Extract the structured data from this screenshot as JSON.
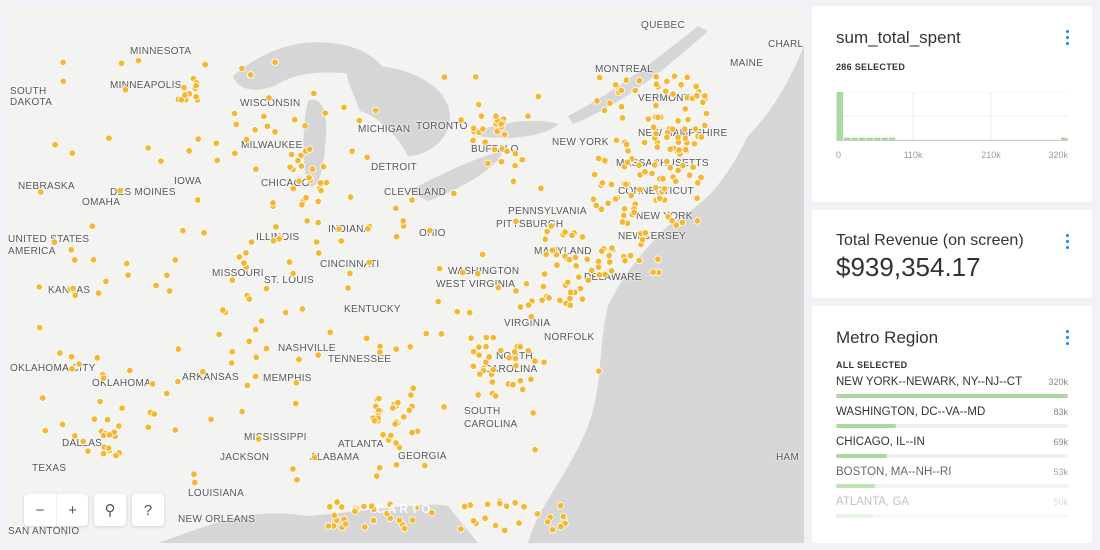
{
  "map": {
    "labels": [
      "MINNESOTA",
      "MINNEAPOLIS",
      "SOUTH",
      "DAKOTA",
      "WISCONSIN",
      "MICHIGAN",
      "TORONTO",
      "MONTREAL",
      "QUEBEC",
      "CHARL",
      "MAINE",
      "VERMONT",
      "NEW HAMPSHIRE",
      "NEW YORK",
      "BUFFALO",
      "MILWAUKEE",
      "DETROIT",
      "CHICAGO",
      "IOWA",
      "NEBRASKA",
      "DES MOINES",
      "OMAHA",
      "CLEVELAND",
      "PENNSYLVANIA",
      "PITTSBURGH",
      "MASSACHUSETTS",
      "CONNECTICUT",
      "NEW YORK",
      "NEW JERSEY",
      "UNITED STATES",
      "AMERICA",
      "ILLINOIS",
      "INDIANA",
      "OHIO",
      "MISSOURI",
      "KANSAS",
      "ST. LOUIS",
      "CINCINNATI",
      "WASHINGTON",
      "MARYLAND",
      "DELAWARE",
      "WEST VIRGINIA",
      "KENTUCKY",
      "VIRGINIA",
      "NORFOLK",
      "NASHVILLE",
      "TENNESSEE",
      "NORTH",
      "CAROLINA",
      "OKLAHOMA CITY",
      "OKLAHOMA",
      "ARKANSAS",
      "MEMPHIS",
      "ATLANTA",
      "ALABAMA",
      "SOUTH",
      "CAROLINA",
      "MISSISSIPPI",
      "GEORGIA",
      "DALLAS",
      "TEXAS",
      "JACKSON",
      "LOUISIANA",
      "NEW ORLEANS",
      "SAN ANTONIO",
      "HAM"
    ],
    "point_color": "#f5b731",
    "attribution": "CARTO"
  },
  "controls": {
    "zoom_out": "−",
    "zoom_in": "+",
    "search_icon": "search-icon",
    "help": "?"
  },
  "widgets": {
    "histogram": {
      "title": "sum_total_spent",
      "status": "286 SELECTED",
      "accent": "#a9d8a0",
      "chart_data": {
        "type": "bar",
        "tick_labels": [
          "0",
          "110k",
          "210k",
          "320k"
        ],
        "bins_relative": [
          1.0,
          0.05,
          0.05,
          0.05,
          0.05,
          0.05,
          0.05,
          0.05,
          0,
          0,
          0,
          0,
          0,
          0,
          0,
          0,
          0,
          0,
          0,
          0,
          0,
          0,
          0,
          0,
          0,
          0,
          0,
          0,
          0,
          0,
          0.05
        ]
      }
    },
    "revenue": {
      "title": "Total Revenue (on screen)",
      "value": "$939,354.17"
    },
    "metro": {
      "title": "Metro Region",
      "status": "ALL SELECTED",
      "items": [
        {
          "name": "NEW YORK--NEWARK, NY--NJ--CT",
          "value": "320k",
          "fraction": 1.0
        },
        {
          "name": "WASHINGTON, DC--VA--MD",
          "value": "83k",
          "fraction": 0.26
        },
        {
          "name": "CHICAGO, IL--IN",
          "value": "69k",
          "fraction": 0.22
        },
        {
          "name": "BOSTON, MA--NH--RI",
          "value": "53k",
          "fraction": 0.17
        },
        {
          "name": "ATLANTA, GA",
          "value": "50k",
          "fraction": 0.16
        }
      ]
    }
  }
}
